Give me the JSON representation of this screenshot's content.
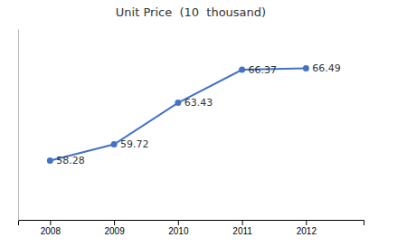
{
  "chart_data": {
    "type": "line",
    "title": "Unit Price  (10  thousand)",
    "x": [
      2008,
      2009,
      2010,
      2011,
      2012
    ],
    "values": [
      58.28,
      59.72,
      63.43,
      66.37,
      66.49
    ],
    "color": "#4472C4",
    "marker": "circle",
    "xlim": [
      2007.5,
      2012.9
    ],
    "xticks": [
      2008,
      2009,
      2010,
      2011,
      2012
    ],
    "ylim": [
      53,
      70
    ],
    "data_labels": true,
    "tick_labels": "x"
  }
}
